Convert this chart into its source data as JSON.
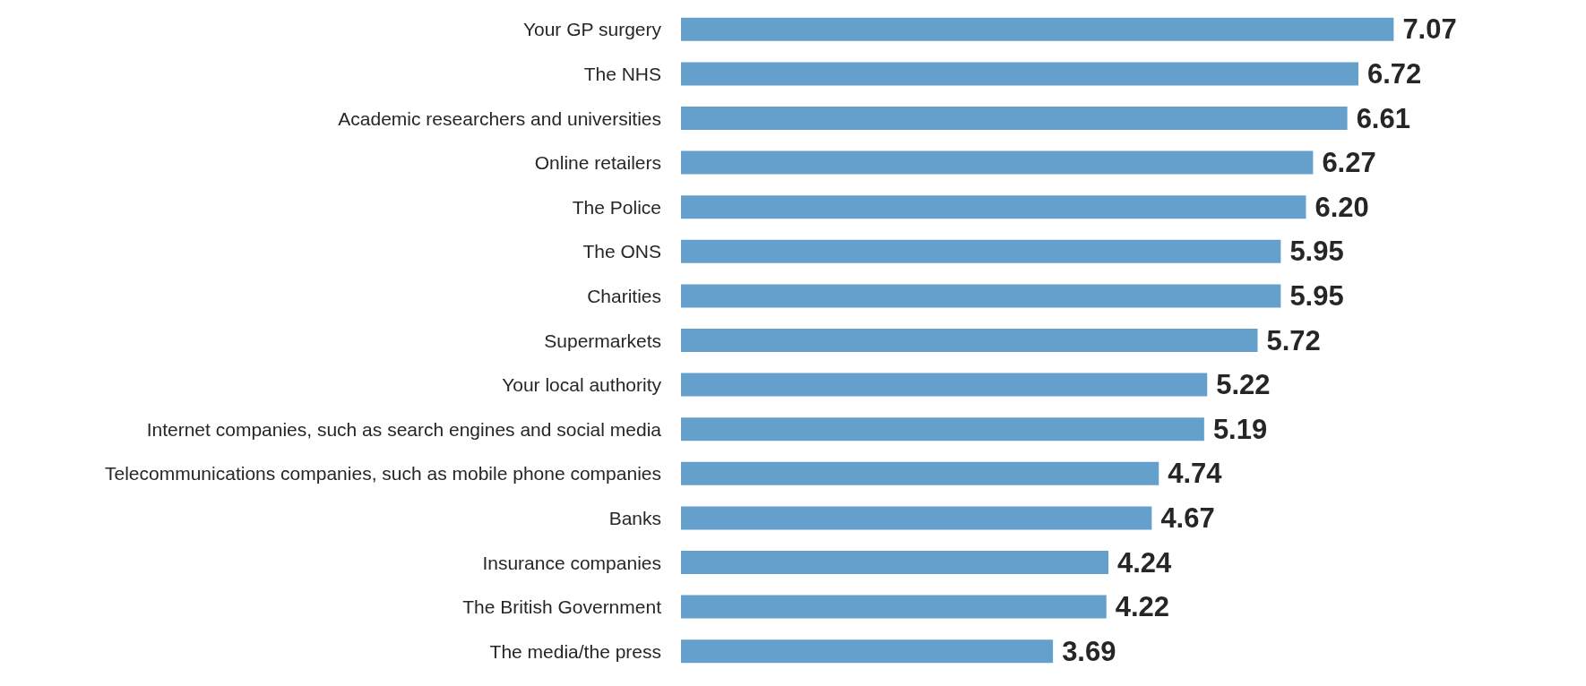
{
  "chart_data": {
    "type": "bar",
    "orientation": "horizontal",
    "data_labels": true,
    "categories": [
      "Your GP surgery",
      "The NHS",
      "Academic researchers and universities",
      "Online retailers",
      "The Police",
      "The ONS",
      "Charities",
      "Supermarkets",
      "Your local authority",
      "Internet companies, such as search engines and social media",
      "Telecommunications companies, such as mobile phone companies",
      "Banks",
      "Insurance companies",
      "The British Government",
      "The media/the press"
    ],
    "values": [
      7.07,
      6.72,
      6.61,
      6.27,
      6.2,
      5.95,
      5.95,
      5.72,
      5.22,
      5.19,
      4.74,
      4.67,
      4.24,
      4.22,
      3.69
    ],
    "value_labels": [
      "7.07",
      "6.72",
      "6.61",
      "6.27",
      "6.20",
      "5.95",
      "5.95",
      "5.72",
      "5.22",
      "5.19",
      "4.74",
      "4.67",
      "4.24",
      "4.22",
      "3.69"
    ],
    "color": "#65a0cc"
  }
}
